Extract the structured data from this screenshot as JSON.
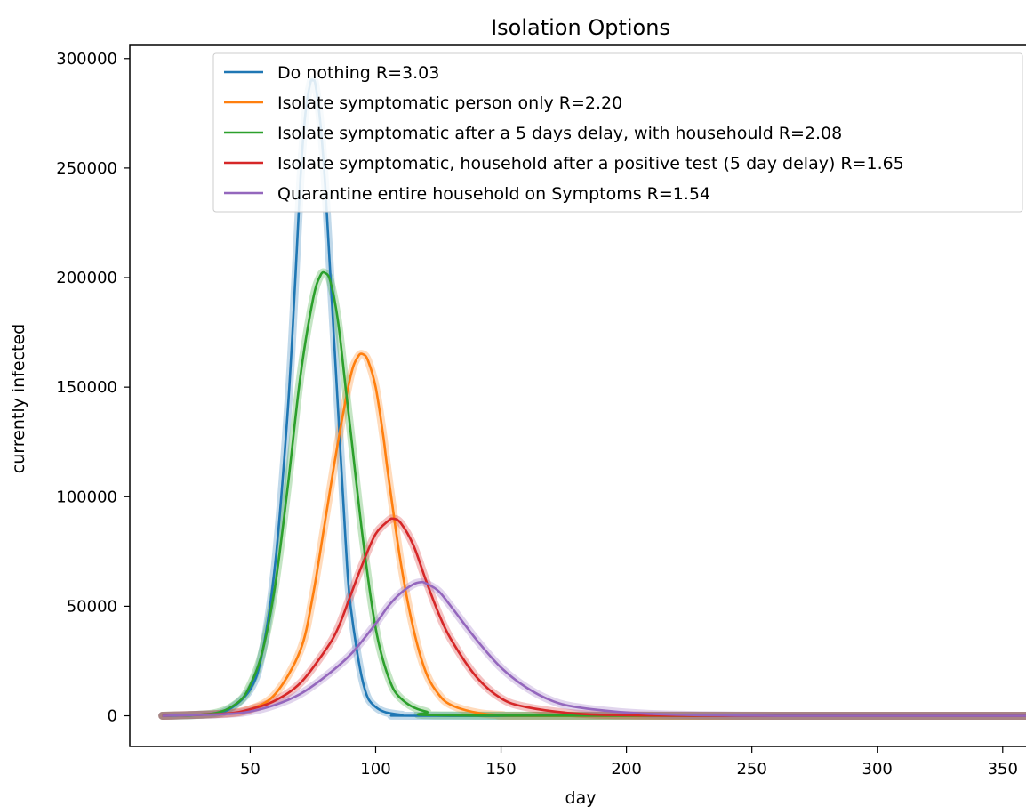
{
  "chart_data": {
    "type": "line",
    "title": "Isolation Options",
    "xlabel": "day",
    "ylabel": "currently infected",
    "xlim": [
      2,
      360
    ],
    "ylim": [
      -14000,
      306000
    ],
    "xticks": [
      50,
      100,
      150,
      200,
      250,
      300,
      350
    ],
    "yticks": [
      0,
      50000,
      100000,
      150000,
      200000,
      250000,
      300000
    ],
    "grid": false,
    "legend_position": "top-right",
    "series": [
      {
        "name": "Do nothing R=3.03",
        "color": "#1f77b4",
        "x": [
          15,
          30,
          40,
          50,
          55,
          60,
          65,
          68,
          70,
          72,
          74,
          75,
          76,
          78,
          80,
          82,
          85,
          88,
          90,
          95,
          100,
          110,
          130,
          360
        ],
        "y": [
          0,
          500,
          2000,
          12000,
          30000,
          70000,
          140000,
          200000,
          245000,
          275000,
          289000,
          290000,
          288000,
          270000,
          240000,
          200000,
          140000,
          80000,
          50000,
          15000,
          4000,
          500,
          0,
          0
        ]
      },
      {
        "name": "Isolate symptomatic person only R=2.20",
        "color": "#ff7f0e",
        "x": [
          15,
          40,
          50,
          60,
          70,
          75,
          80,
          85,
          90,
          93,
          95,
          97,
          100,
          103,
          105,
          110,
          115,
          120,
          125,
          130,
          140,
          150,
          170,
          360
        ],
        "y": [
          0,
          1000,
          3000,
          10000,
          30000,
          55000,
          90000,
          125000,
          155000,
          164000,
          165000,
          162000,
          150000,
          128000,
          110000,
          70000,
          40000,
          20000,
          10000,
          5000,
          1500,
          400,
          0,
          0
        ]
      },
      {
        "name": "Isolate symptomatic after a 5 days delay, with househould R=2.08",
        "color": "#2ca02c",
        "x": [
          15,
          35,
          45,
          50,
          55,
          60,
          65,
          70,
          75,
          78,
          80,
          82,
          85,
          88,
          90,
          95,
          100,
          105,
          110,
          120,
          140,
          360
        ],
        "y": [
          0,
          1000,
          6000,
          14000,
          30000,
          60000,
          105000,
          155000,
          190000,
          201000,
          202000,
          198000,
          180000,
          150000,
          130000,
          80000,
          40000,
          18000,
          8000,
          2000,
          100,
          0
        ]
      },
      {
        "name": "Isolate symptomatic, household after a positive test (5 day delay) R=1.65",
        "color": "#d62728",
        "x": [
          15,
          40,
          50,
          60,
          70,
          80,
          85,
          90,
          95,
          100,
          105,
          107,
          110,
          115,
          120,
          125,
          130,
          140,
          150,
          160,
          180,
          200,
          240,
          360
        ],
        "y": [
          0,
          1000,
          3000,
          7000,
          15000,
          30000,
          40000,
          55000,
          70000,
          83000,
          89000,
          90000,
          88000,
          78000,
          62000,
          47000,
          35000,
          18000,
          8000,
          4000,
          1000,
          300,
          0,
          0
        ]
      },
      {
        "name": "Quarantine entire household on Symptoms R=1.54",
        "color": "#9467bd",
        "x": [
          15,
          40,
          50,
          60,
          70,
          80,
          90,
          100,
          105,
          110,
          115,
          118,
          120,
          125,
          130,
          140,
          150,
          160,
          170,
          180,
          200,
          220,
          260,
          360
        ],
        "y": [
          0,
          800,
          2000,
          5000,
          10000,
          18000,
          28000,
          42000,
          50000,
          56000,
          60000,
          61000,
          60500,
          57000,
          50000,
          35000,
          22000,
          13000,
          7000,
          4000,
          1500,
          500,
          0,
          0
        ]
      }
    ]
  }
}
